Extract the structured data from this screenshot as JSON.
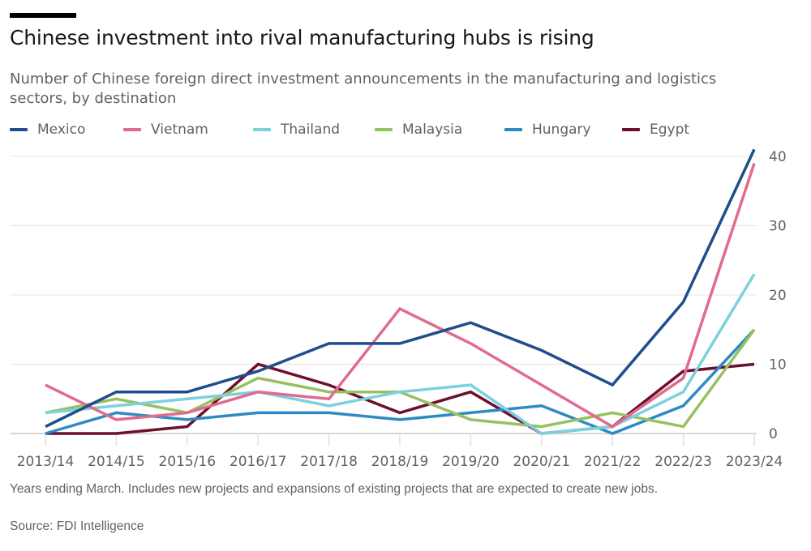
{
  "header": {
    "title": "Chinese investment into rival manufacturing hubs is rising",
    "subtitle": "Number of Chinese foreign direct investment announcements in the manufacturing and logistics sectors, by destination"
  },
  "footer": {
    "note": "Years ending March. Includes new projects and expansions of existing projects that are expected to create new jobs.",
    "source": "Source: FDI Intelligence"
  },
  "chart_data": {
    "type": "line",
    "title": "Chinese investment into rival manufacturing hubs is rising",
    "subtitle": "Number of Chinese foreign direct investment announcements in the manufacturing and logistics sectors, by destination",
    "xlabel": "",
    "ylabel": "",
    "categories": [
      "2013/14",
      "2014/15",
      "2015/16",
      "2016/17",
      "2017/18",
      "2018/19",
      "2019/20",
      "2020/21",
      "2021/22",
      "2022/23",
      "2023/24"
    ],
    "ylim": [
      0,
      40
    ],
    "yticks": [
      0,
      10,
      20,
      30,
      40
    ],
    "y_axis_side": "right",
    "grid": true,
    "legend_position": "top-left",
    "series": [
      {
        "name": "Mexico",
        "color": "#1f4e8c",
        "values": [
          1,
          6,
          6,
          9,
          13,
          13,
          16,
          12,
          7,
          19,
          41
        ]
      },
      {
        "name": "Vietnam",
        "color": "#e06b8f",
        "values": [
          7,
          2,
          3,
          6,
          5,
          18,
          13,
          7,
          1,
          8,
          39
        ]
      },
      {
        "name": "Thailand",
        "color": "#7dd0de",
        "values": [
          3,
          4,
          5,
          6,
          4,
          6,
          7,
          0,
          1,
          6,
          23
        ]
      },
      {
        "name": "Malaysia",
        "color": "#96c160",
        "values": [
          3,
          5,
          3,
          8,
          6,
          6,
          2,
          1,
          3,
          1,
          15
        ]
      },
      {
        "name": "Hungary",
        "color": "#2f8ac4",
        "values": [
          0,
          3,
          2,
          3,
          3,
          2,
          3,
          4,
          0,
          4,
          15
        ]
      },
      {
        "name": "Egypt",
        "color": "#6e0f2e",
        "values": [
          0,
          0,
          1,
          10,
          7,
          3,
          6,
          0,
          1,
          9,
          10
        ]
      }
    ],
    "source": "Source: FDI Intelligence",
    "note": "Years ending March. Includes new projects and expansions of existing projects that are expected to create new jobs."
  }
}
